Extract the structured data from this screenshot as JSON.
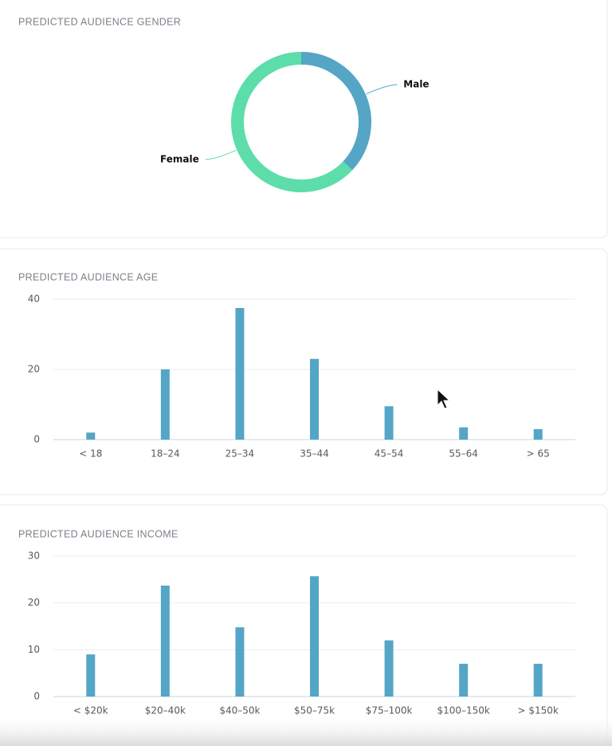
{
  "chart_data": [
    {
      "type": "donut",
      "title": "PREDICTED AUDIENCE GENDER",
      "categories": [
        "Male",
        "Female"
      ],
      "values": [
        37,
        63
      ],
      "colors": [
        "#55a5c6",
        "#5ddda9"
      ]
    },
    {
      "type": "bar",
      "title": "PREDICTED AUDIENCE AGE",
      "categories": [
        "< 18",
        "18–24",
        "25–34",
        "35–44",
        "45–54",
        "55–64",
        "> 65"
      ],
      "values": [
        2,
        20,
        37.5,
        23,
        9.5,
        3.5,
        3
      ],
      "color": "#55a5c6",
      "ylim": [
        0,
        40
      ],
      "yticks": [
        0,
        20,
        40
      ],
      "grid": true
    },
    {
      "type": "bar",
      "title": "PREDICTED AUDIENCE INCOME",
      "categories": [
        "< $20k",
        "$20–40k",
        "$40–50k",
        "$50–75k",
        "$75–100k",
        "$100–150k",
        "> $150k"
      ],
      "values": [
        9,
        23.7,
        14.8,
        25.7,
        12,
        7,
        7
      ],
      "color": "#55a5c6",
      "ylim": [
        0,
        30
      ],
      "yticks": [
        0,
        10,
        20,
        30
      ],
      "grid": true
    }
  ]
}
